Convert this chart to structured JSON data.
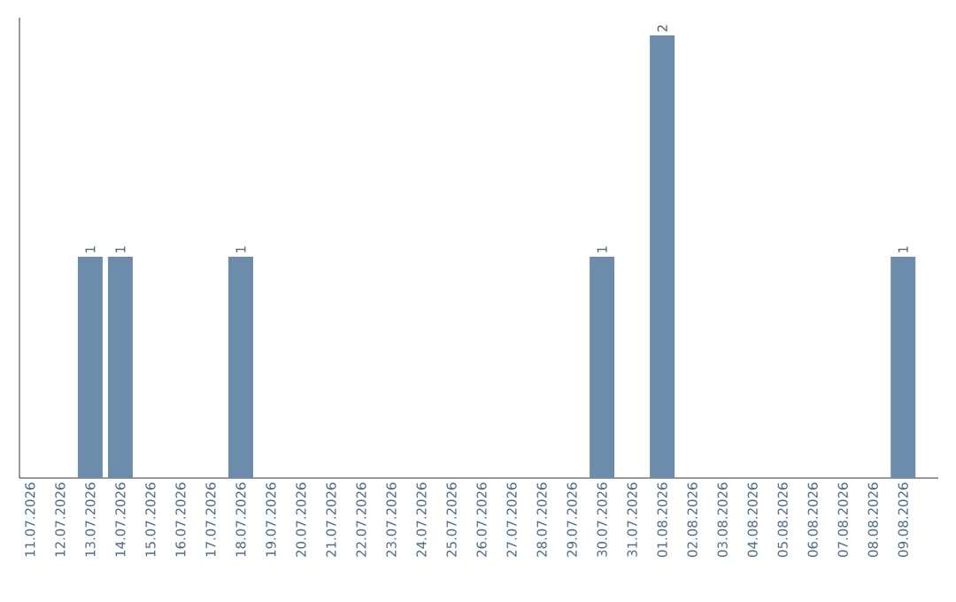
{
  "chart_data": {
    "type": "bar",
    "categories": [
      "11.07.2026",
      "12.07.2026",
      "13.07.2026",
      "14.07.2026",
      "15.07.2026",
      "16.07.2026",
      "17.07.2026",
      "18.07.2026",
      "19.07.2026",
      "20.07.2026",
      "21.07.2026",
      "22.07.2026",
      "23.07.2026",
      "24.07.2026",
      "25.07.2026",
      "26.07.2026",
      "27.07.2026",
      "28.07.2026",
      "29.07.2026",
      "30.07.2026",
      "31.07.2026",
      "01.08.2026",
      "02.08.2026",
      "03.08.2026",
      "04.08.2026",
      "05.08.2026",
      "06.08.2026",
      "07.08.2026",
      "08.08.2026",
      "09.08.2026"
    ],
    "values": [
      0,
      0,
      1,
      1,
      0,
      0,
      0,
      1,
      0,
      0,
      0,
      0,
      0,
      0,
      0,
      0,
      0,
      0,
      0,
      1,
      0,
      2,
      0,
      0,
      0,
      0,
      0,
      0,
      0,
      1
    ],
    "value_labels": [
      null,
      null,
      "1",
      "1",
      null,
      null,
      null,
      "1",
      null,
      null,
      null,
      null,
      null,
      null,
      null,
      null,
      null,
      null,
      null,
      "1",
      null,
      "2",
      null,
      null,
      null,
      null,
      null,
      null,
      null,
      "1"
    ],
    "color": "#6b8caa",
    "tick_labels": "x"
  }
}
